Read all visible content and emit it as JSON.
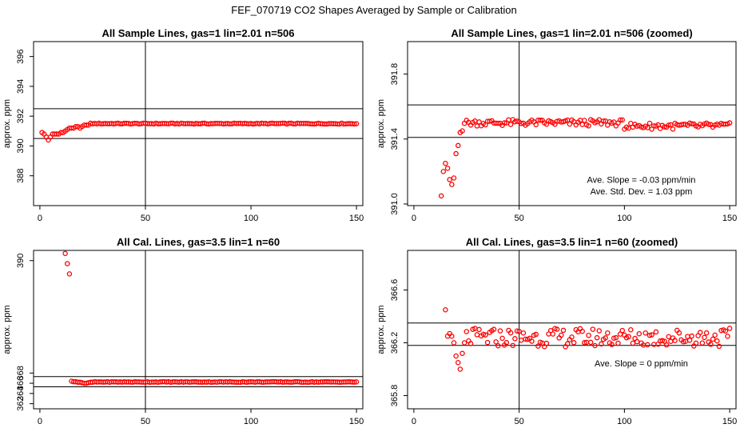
{
  "title": "FEF_070719  CO2 Shapes Averaged by Sample or Calibration",
  "colors": {
    "points": "#ff0000",
    "lines": "#000000"
  },
  "chart_data": [
    {
      "type": "scatter",
      "title": "All Sample Lines, gas=1 lin=2.01 n=506",
      "ylabel": "approx. ppm",
      "xlim": [
        -3,
        153
      ],
      "ylim": [
        386,
        397
      ],
      "xticks": [
        0,
        50,
        100,
        150
      ],
      "yticks": [
        388,
        390,
        392,
        394,
        396
      ],
      "ytick_labels": [
        "388",
        "390",
        "392",
        "394",
        "396"
      ],
      "vline": 50,
      "hlines": [
        390.5,
        392.5
      ],
      "annotations": [],
      "gen": "s1"
    },
    {
      "type": "scatter",
      "title": "All Sample Lines, gas=1 lin=2.01 n=506 (zoomed)",
      "ylabel": "approx. ppm",
      "xlim": [
        -3,
        153
      ],
      "ylim": [
        390.99,
        392.0
      ],
      "xticks": [
        0,
        50,
        100,
        150
      ],
      "yticks": [
        391.0,
        391.4,
        391.8
      ],
      "ytick_labels": [
        "391.0",
        "391.4",
        "391.8"
      ],
      "vline": 50,
      "hlines": [
        391.41,
        391.61
      ],
      "annotations": [
        {
          "text": "Ave. Slope =  -0.03  ppm/min",
          "x": 108,
          "y": 391.13
        },
        {
          "text": "Ave. Std. Dev. =  1.03  ppm",
          "x": 108,
          "y": 391.06
        }
      ],
      "gen": "s2"
    },
    {
      "type": "scatter",
      "title": "All Cal. Lines, gas=3.5 lin=1 n=60",
      "ylabel": "approx. ppm",
      "xlim": [
        -3,
        153
      ],
      "ylim": [
        361,
        392
      ],
      "xticks": [
        0,
        50,
        100,
        150
      ],
      "yticks": [
        362,
        364,
        366,
        368,
        390
      ],
      "ytick_labels": [
        "362",
        "364",
        "366",
        "368",
        "390"
      ],
      "vline": 50,
      "hlines": [
        367.3,
        365.3
      ],
      "annotations": [],
      "gen": "c1"
    },
    {
      "type": "scatter",
      "title": "All Cal. Lines, gas=3.5 lin=1 n=60 (zoomed)",
      "ylabel": "approx. ppm",
      "xlim": [
        -3,
        153
      ],
      "ylim": [
        365.7,
        366.9
      ],
      "xticks": [
        0,
        50,
        100,
        150
      ],
      "yticks": [
        365.8,
        366.2,
        366.6
      ],
      "ytick_labels": [
        "365.8",
        "366.2",
        "366.6"
      ],
      "vline": 50,
      "hlines": [
        366.18,
        366.35
      ],
      "annotations": [
        {
          "text": "Ave. Slope =  0  ppm/min",
          "x": 108,
          "y": 366.02
        }
      ],
      "gen": "c2"
    }
  ]
}
